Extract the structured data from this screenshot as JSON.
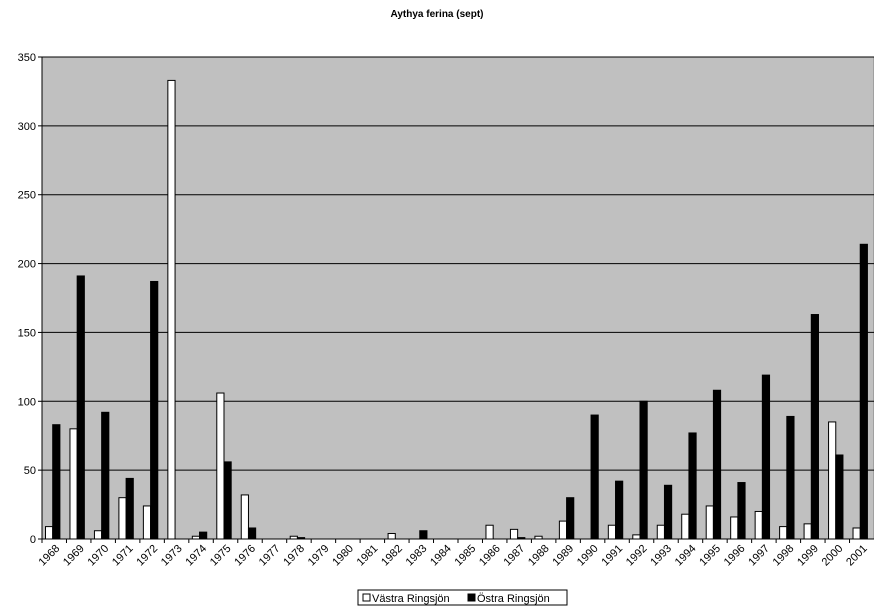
{
  "chart_data": {
    "type": "bar",
    "title": "Aythya ferina (sept)",
    "xlabel": "",
    "ylabel": "",
    "ylim": [
      0,
      350
    ],
    "yticks": [
      0,
      50,
      100,
      150,
      200,
      250,
      300,
      350
    ],
    "grid": true,
    "legend": "bottom",
    "categories": [
      "1968",
      "1969",
      "1970",
      "1971",
      "1972",
      "1973",
      "1974",
      "1975",
      "1976",
      "1977",
      "1978",
      "1979",
      "1980",
      "1981",
      "1982",
      "1983",
      "1984",
      "1985",
      "1986",
      "1987",
      "1988",
      "1989",
      "1990",
      "1991",
      "1992",
      "1993",
      "1994",
      "1995",
      "1996",
      "1997",
      "1998",
      "1999",
      "2000",
      "2001"
    ],
    "series": [
      {
        "name": "Västra Ringsjön",
        "color": "#ffffff",
        "values": [
          9,
          80,
          6,
          30,
          24,
          333,
          2,
          106,
          32,
          0,
          2,
          0,
          0,
          0,
          4,
          0,
          0,
          0,
          10,
          7,
          2,
          13,
          0,
          10,
          3,
          10,
          18,
          24,
          16,
          20,
          9,
          11,
          85,
          8
        ]
      },
      {
        "name": "Östra Ringsjön",
        "color": "#000000",
        "values": [
          83,
          191,
          92,
          44,
          187,
          0,
          5,
          56,
          8,
          0,
          1,
          0,
          0,
          0,
          0,
          6,
          0,
          0,
          0,
          1,
          0,
          30,
          90,
          42,
          100,
          39,
          77,
          108,
          41,
          119,
          89,
          163,
          61,
          214
        ]
      }
    ]
  }
}
